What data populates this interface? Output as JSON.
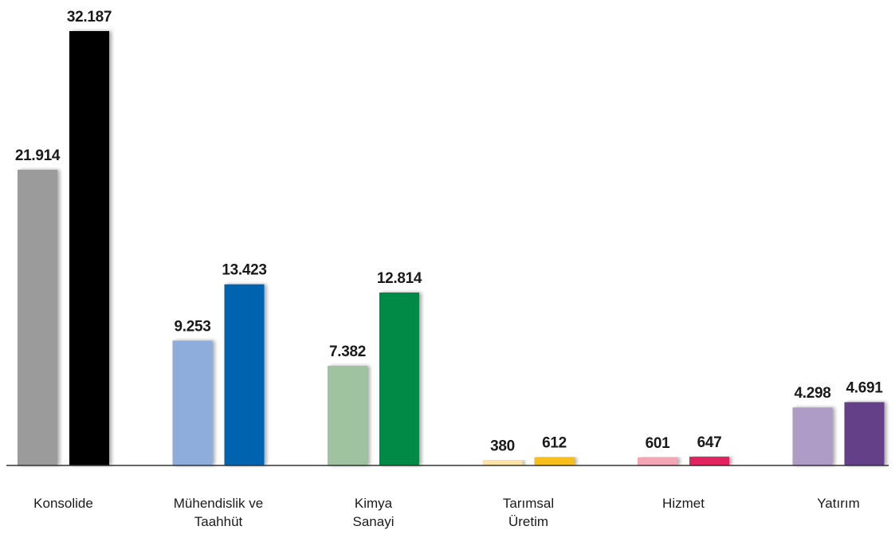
{
  "chart_data": {
    "type": "bar",
    "title": "",
    "xlabel": "",
    "ylabel": "",
    "ylim": [
      0,
      32187
    ],
    "grid": false,
    "legend": "none",
    "categories": [
      [
        "Konsolide"
      ],
      [
        "Mühendislik ve",
        "Taahhüt"
      ],
      [
        "Kimya",
        "Sanayi"
      ],
      [
        "Tarımsal",
        "Üretim"
      ],
      [
        "Hizmet"
      ],
      [
        "Yatırım"
      ]
    ],
    "series": [
      {
        "values": [
          21914,
          9253,
          7382,
          380,
          601,
          4298
        ],
        "labels": [
          "21.914",
          "9.253",
          "7.382",
          "380",
          "601",
          "4.298"
        ],
        "colors": [
          "#9b9b9b",
          "#8eaddc",
          "#9fc29f",
          "#fde3a6",
          "#f4a6b6",
          "#ae9cc6"
        ]
      },
      {
        "values": [
          32187,
          13423,
          12814,
          612,
          647,
          4691
        ],
        "labels": [
          "32.187",
          "13.423",
          "12.814",
          "612",
          "647",
          "4.691"
        ],
        "colors": [
          "#000000",
          "#0564b0",
          "#008a45",
          "#f8be1e",
          "#e0245e",
          "#633f88"
        ]
      }
    ]
  }
}
